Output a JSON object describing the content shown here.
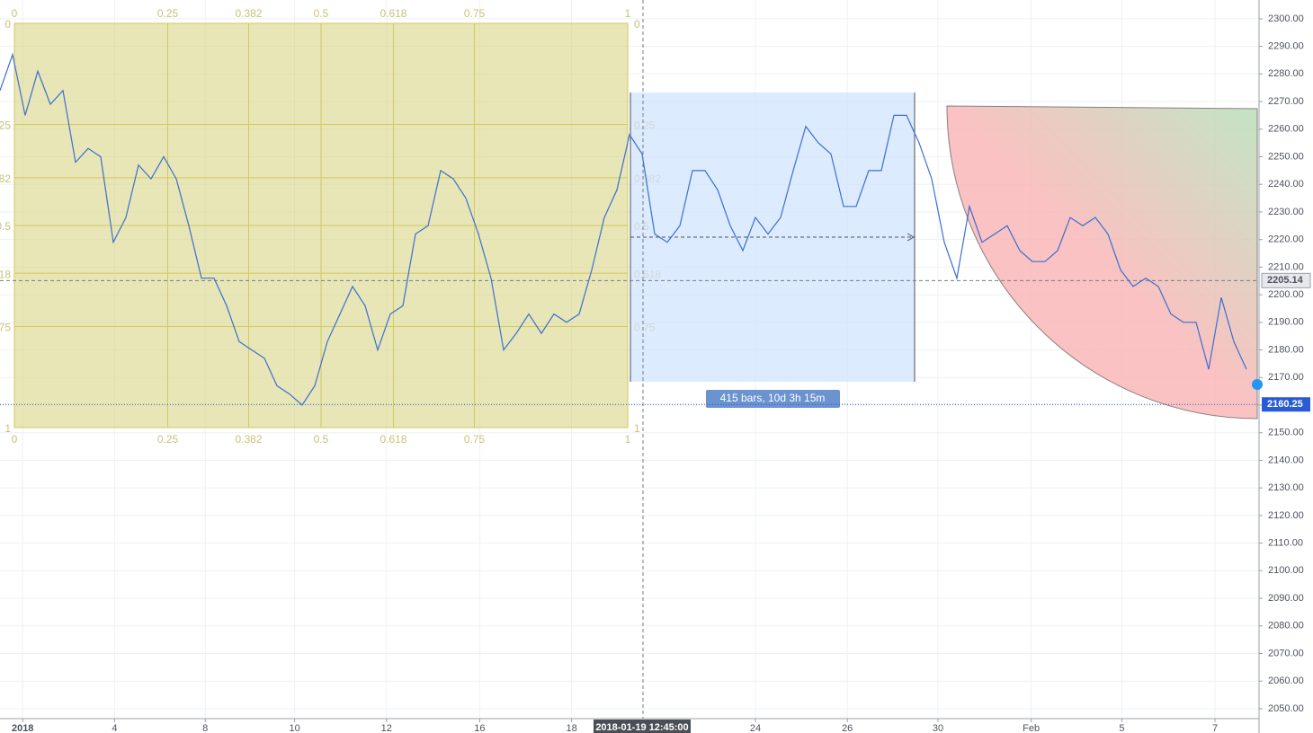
{
  "chart_data": {
    "type": "line",
    "color": "#3a6fd1",
    "values": [
      2274,
      2287,
      2265,
      2281,
      2269,
      2274,
      2248,
      2253,
      2250,
      2219,
      2228,
      2247,
      2242,
      2250,
      2242,
      2225,
      2206,
      2206,
      2196,
      2183,
      2180,
      2177,
      2167,
      2164,
      2160,
      2167,
      2183,
      2193,
      2203,
      2196,
      2180,
      2193,
      2196,
      2222,
      2225,
      2245,
      2242,
      2235,
      2222,
      2206,
      2180,
      2186,
      2193,
      2186,
      2193,
      2190,
      2193,
      2209,
      2228,
      2238,
      2258,
      2251,
      2222,
      2219,
      2225,
      2245,
      2245,
      2238,
      2225,
      2216,
      2228,
      2222,
      2228,
      2245,
      2261,
      2255,
      2251,
      2232,
      2232,
      2245,
      2245,
      2265,
      2265,
      2255,
      2242,
      2219,
      2206,
      2232,
      2219,
      2222,
      2225,
      2216,
      2212,
      2212,
      2216,
      2228,
      2225,
      2228,
      2222,
      2209,
      2203,
      2206,
      2203,
      2193,
      2190,
      2190,
      2173,
      2199,
      2183,
      2173
    ],
    "xlim": [
      0,
      100
    ],
    "xticks": [
      {
        "value": 1.8,
        "label": "2018"
      },
      {
        "value": 9.1,
        "label": "4"
      },
      {
        "value": 16.3,
        "label": "8"
      },
      {
        "value": 23.4,
        "label": "10"
      },
      {
        "value": 30.7,
        "label": "12"
      },
      {
        "value": 38.1,
        "label": "16"
      },
      {
        "value": 45.4,
        "label": "18"
      },
      {
        "value": 60,
        "label": "24"
      },
      {
        "value": 67.3,
        "label": "26"
      },
      {
        "value": 74.5,
        "label": "30"
      },
      {
        "value": 81.9,
        "label": "Feb"
      },
      {
        "value": 89.1,
        "label": "5"
      },
      {
        "value": 96.5,
        "label": "7"
      }
    ],
    "ylim": [
      2046.4,
      2306.8
    ],
    "yticks": [
      {
        "value": 2300,
        "label": "2300.00"
      },
      {
        "value": 2290,
        "label": "2290.00"
      },
      {
        "value": 2280,
        "label": "2280.00"
      },
      {
        "value": 2270,
        "label": "2270.00"
      },
      {
        "value": 2260,
        "label": "2260.00"
      },
      {
        "value": 2250,
        "label": "2250.00"
      },
      {
        "value": 2240,
        "label": "2240.00"
      },
      {
        "value": 2230,
        "label": "2230.00"
      },
      {
        "value": 2220,
        "label": "2220.00"
      },
      {
        "value": 2210,
        "label": "2210.00"
      },
      {
        "value": 2200,
        "label": "2200.00"
      },
      {
        "value": 2190,
        "label": "2190.00"
      },
      {
        "value": 2180,
        "label": "2180.00"
      },
      {
        "value": 2170,
        "label": "2170.00"
      },
      {
        "value": 2160,
        "label": "2160.00"
      },
      {
        "value": 2150,
        "label": "2150.00"
      },
      {
        "value": 2140,
        "label": "2140.00"
      },
      {
        "value": 2130,
        "label": "2130.00"
      },
      {
        "value": 2120,
        "label": "2120.00"
      },
      {
        "value": 2110,
        "label": "2110.00"
      },
      {
        "value": 2100,
        "label": "2100.00"
      },
      {
        "value": 2090,
        "label": "2090.00"
      },
      {
        "value": 2080,
        "label": "2080.00"
      },
      {
        "value": 2070,
        "label": "2070.00"
      },
      {
        "value": 2060,
        "label": "2060.00"
      },
      {
        "value": 2050,
        "label": "2050.00"
      }
    ],
    "grid": true,
    "last_price": 2160.25,
    "crosshair_price": 2205.14,
    "crosshair_time": "2018-01-19 12:45:00",
    "fib_levels": [
      0,
      0.25,
      0.382,
      0.5,
      0.618,
      0.75,
      1
    ],
    "date_range_label": "415 bars, 10d 3h 15m"
  }
}
